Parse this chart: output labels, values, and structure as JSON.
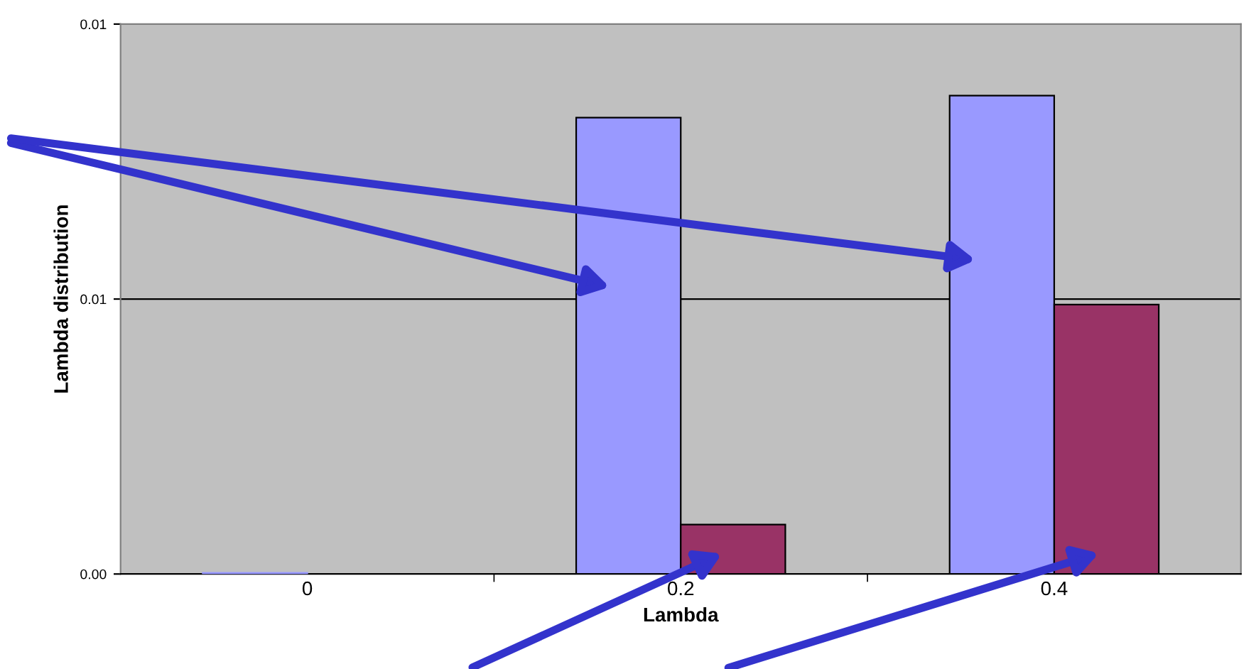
{
  "chart_data": {
    "type": "bar",
    "xlabel": "Lambda",
    "ylabel": "Lambda distribution",
    "categories": [
      "0",
      "0.2",
      "0.4"
    ],
    "series": [
      {
        "color": "#9999ff",
        "values": [
          0,
          0.0083,
          0.0087
        ]
      },
      {
        "color": "#993366",
        "values": [
          null,
          0.0009,
          0.0049
        ]
      }
    ],
    "ylim": [
      0,
      0.01
    ],
    "yticks": [
      {
        "value": 0,
        "label": "0.00"
      },
      {
        "value": 0.005,
        "label": "0.01"
      },
      {
        "value": 0.01,
        "label": "0.01"
      }
    ],
    "grid": "y"
  }
}
